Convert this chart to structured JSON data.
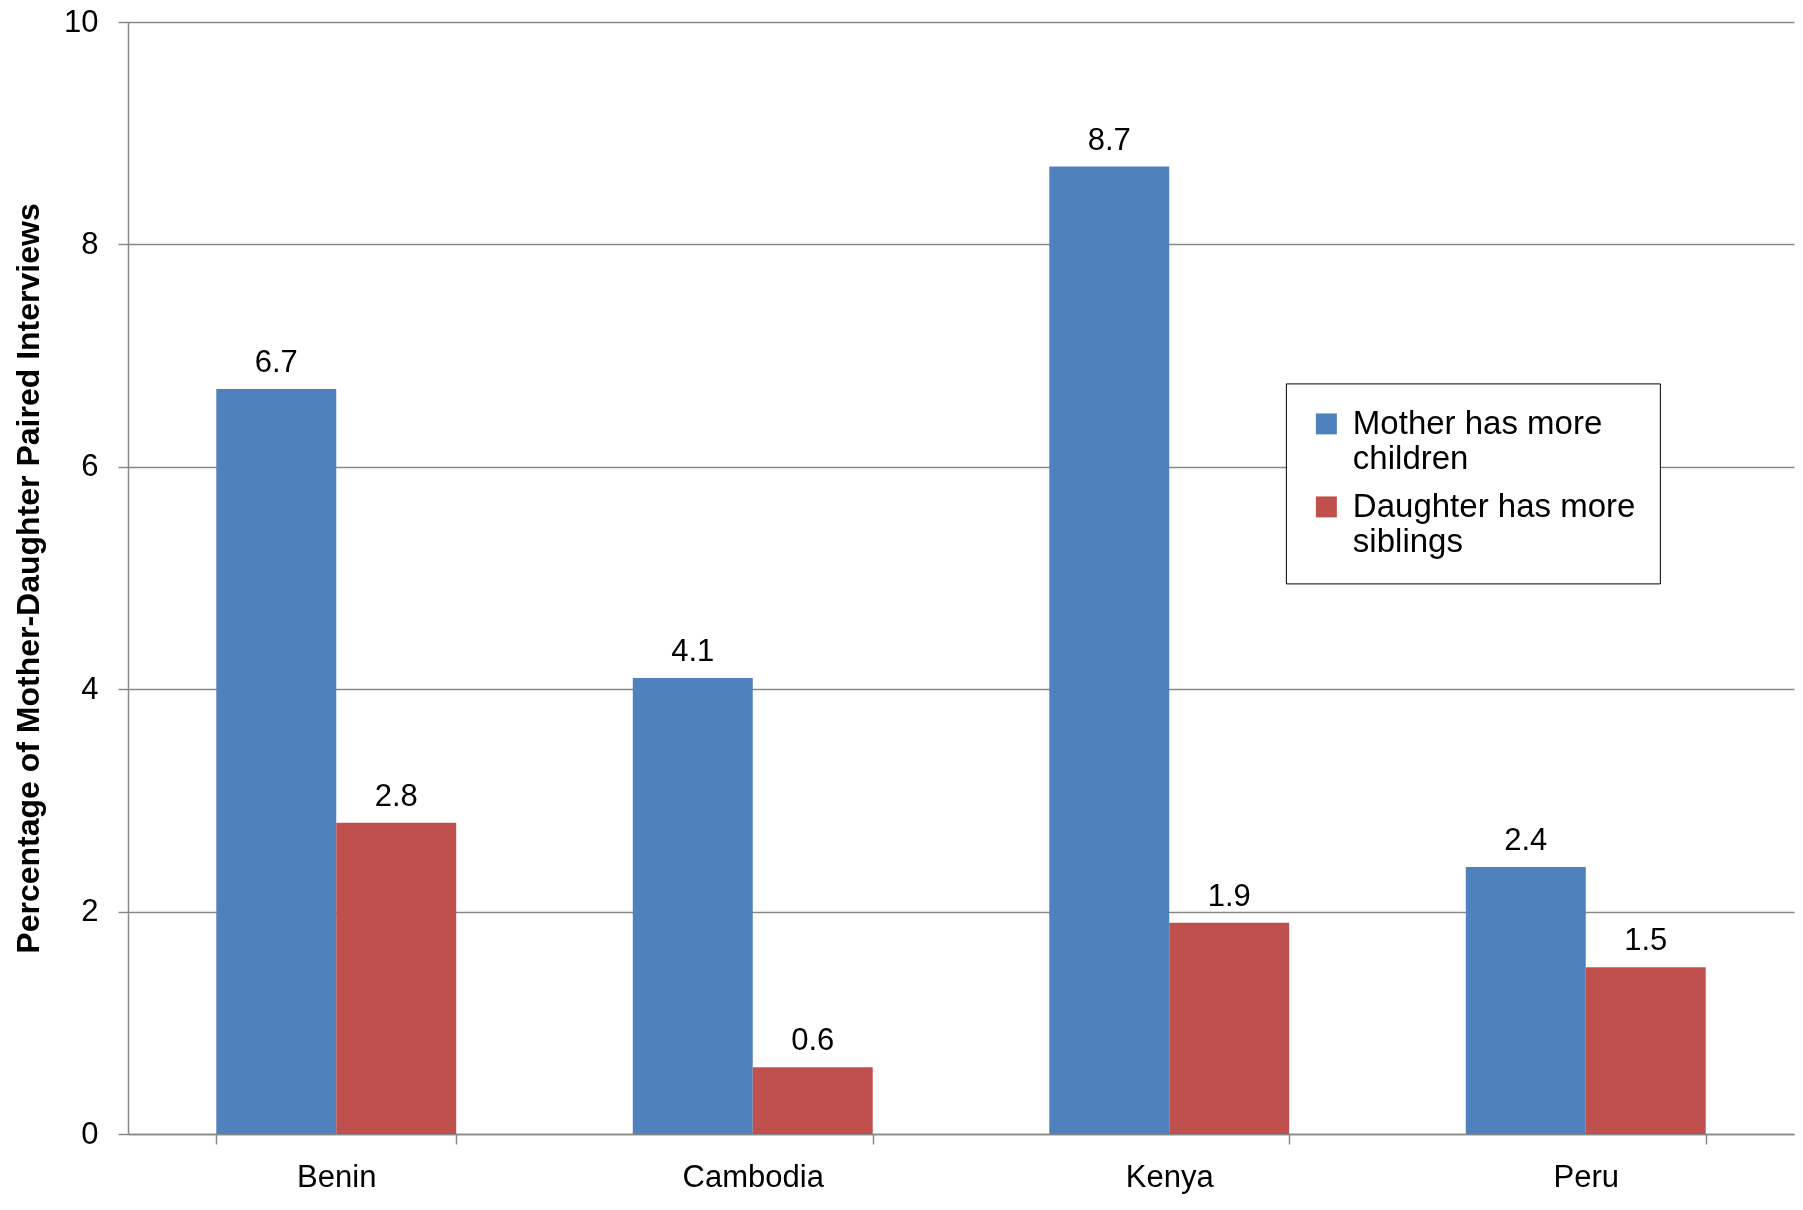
{
  "chart_data": {
    "type": "bar",
    "ylabel": "Percentage of Mother-Daughter Paired Interviews",
    "categories": [
      "Benin",
      "Cambodia",
      "Kenya",
      "Peru"
    ],
    "series": [
      {
        "name": "Mother has more children",
        "color": "#4f81bd",
        "values": [
          6.7,
          4.1,
          8.7,
          2.4
        ]
      },
      {
        "name": "Daughter has more siblings",
        "color": "#c0504d",
        "values": [
          2.8,
          0.6,
          1.9,
          1.5
        ]
      }
    ],
    "ylim": [
      0,
      10
    ],
    "yticks": [
      0,
      2,
      4,
      6,
      8,
      10
    ],
    "grid": "y",
    "legend": "right",
    "data_labels": true
  }
}
